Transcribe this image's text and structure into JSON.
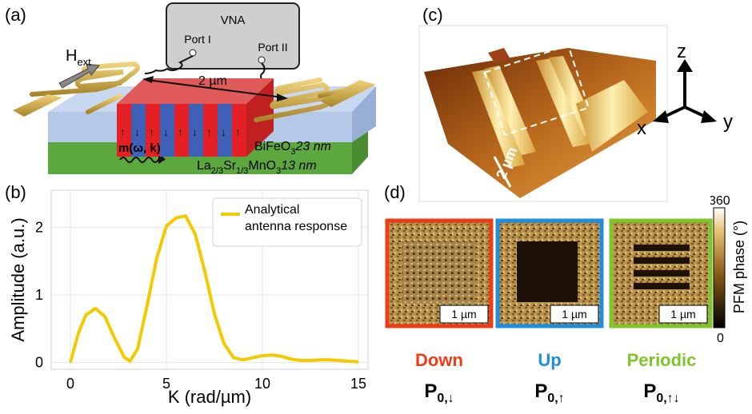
{
  "panels": {
    "a": "(a)",
    "b": "(b)",
    "c": "(c)",
    "d": "(d)"
  },
  "schematic": {
    "vna": "VNA",
    "port1": "Port I",
    "port2": "Port II",
    "field_base": "H",
    "field_sub": "ext",
    "length": "2 µm",
    "magnon": "m(ω, k)",
    "bfo_base": "BiFeO",
    "bfo_sub": "3",
    "bfo_thick": "23 nm",
    "lsmo_a": "La",
    "lsmo_a_sub": "2/3",
    "lsmo_b": "Sr",
    "lsmo_b_sub": "1/3",
    "lsmo_c": "MnO",
    "lsmo_c_sub": "3",
    "lsmo_thick": "13 nm"
  },
  "afm": {
    "scale": "2 µm",
    "axis_z": "z",
    "axis_x": "x",
    "axis_y": "y"
  },
  "chart_data": {
    "type": "line",
    "xlabel": "K (rad/µm)",
    "ylabel": "Amplitude (a.u.)",
    "xlim": [
      -1,
      15.5
    ],
    "ylim": [
      -0.1,
      2.55
    ],
    "xticks": [
      0,
      5,
      10,
      15
    ],
    "yticks": [
      0,
      1,
      2
    ],
    "grid": true,
    "legend_placement": "top-right",
    "series": [
      {
        "name": "Analytical antenna response",
        "color": "#f5c900",
        "x": [
          0,
          0.4,
          0.8,
          1.3,
          1.8,
          2.3,
          2.8,
          3.1,
          3.5,
          4.0,
          4.5,
          5.0,
          5.5,
          6.0,
          6.5,
          7.0,
          7.5,
          8.0,
          8.5,
          9.0,
          9.5,
          10.0,
          10.5,
          11.0,
          11.5,
          12.0,
          12.5,
          13.0,
          13.5,
          14.0,
          14.5,
          15.0
        ],
        "y": [
          0.0,
          0.42,
          0.7,
          0.8,
          0.68,
          0.36,
          0.08,
          0.02,
          0.2,
          0.85,
          1.55,
          2.02,
          2.14,
          2.17,
          1.9,
          1.35,
          0.72,
          0.28,
          0.07,
          0.04,
          0.07,
          0.1,
          0.11,
          0.09,
          0.05,
          0.03,
          0.03,
          0.04,
          0.04,
          0.03,
          0.02,
          0.01
        ]
      }
    ]
  },
  "pfm": {
    "colorbar_max": "360",
    "colorbar_min": "0",
    "colorbar_label": "PFM phase (°)",
    "images": [
      {
        "title": "Down",
        "title_color": "#f03c16",
        "frame": "#f03c16",
        "scale": "1 µm",
        "pol_sub": "0,↓"
      },
      {
        "title": "Up",
        "title_color": "#1e8fe0",
        "frame": "#1e8fe0",
        "scale": "1 µm",
        "pol_sub": "0,↑"
      },
      {
        "title": "Periodic",
        "title_color": "#7cc62c",
        "frame": "#7cc62c",
        "scale": "1 µm",
        "pol_sub": "0,↑↓"
      }
    ],
    "pol_base": "P"
  }
}
